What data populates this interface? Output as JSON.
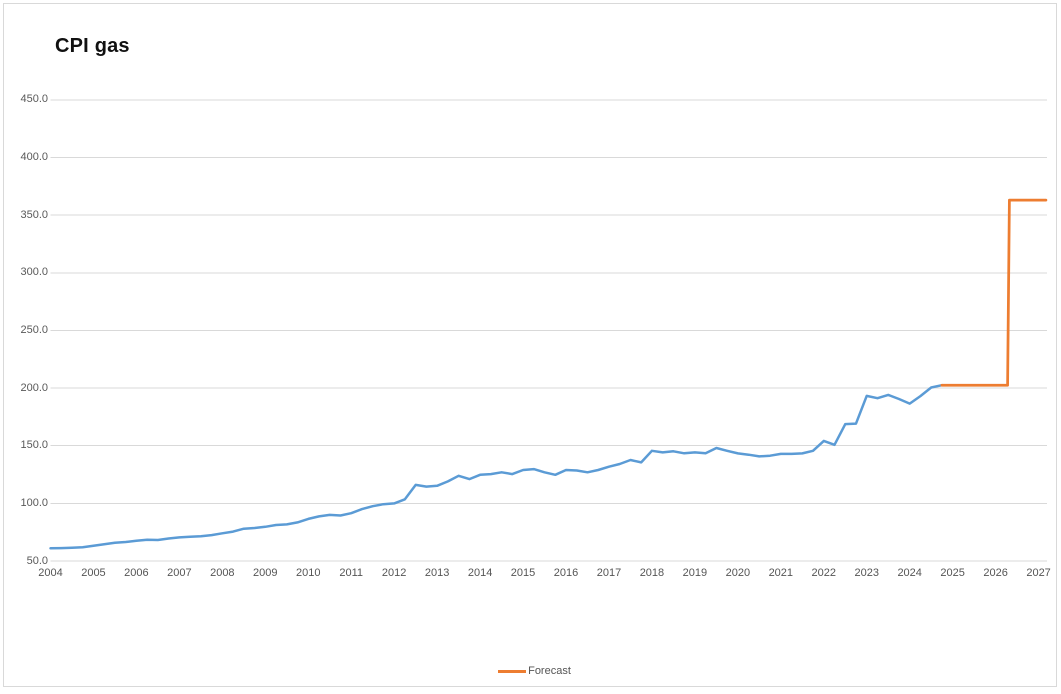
{
  "frame": {
    "background": "#ffffff",
    "border_color": "#d9d9d9"
  },
  "chart_data": {
    "type": "line",
    "title": "CPI gas",
    "xlabel": "",
    "ylabel": "",
    "ylim": [
      50,
      475
    ],
    "xlim": [
      2004,
      2027.2
    ],
    "grid": "horizontal",
    "y_tick_labels": [
      "450.0",
      "400.0",
      "350.0",
      "300.0",
      "250.0",
      "200.0",
      "150.0",
      "100.0",
      "50.0"
    ],
    "x_tick_labels": [
      "2004",
      "2005",
      "2006",
      "2007",
      "2008",
      "2009",
      "2010",
      "2011",
      "2012",
      "2013",
      "2014",
      "2015",
      "2016",
      "2017",
      "2018",
      "2019",
      "2020",
      "2021",
      "2022",
      "2023",
      "2024",
      "2025",
      "2026",
      "2027"
    ],
    "colors": {
      "actual_line": "#5b9bd5",
      "forecast_line": "#ed7d31",
      "gridline": "#d9d9d9",
      "tick_label": "#595959"
    },
    "legend": {
      "position": "bottom-center",
      "entries": [
        {
          "label": "Forecast",
          "color": "#ed7d31"
        }
      ]
    },
    "series": [
      {
        "name": "CPI gas actual",
        "color": "#5b9bd5",
        "stroke_width": 2.5,
        "points": [
          [
            2004.0,
            61.0
          ],
          [
            2004.25,
            61.2
          ],
          [
            2004.5,
            61.5
          ],
          [
            2004.75,
            62.0
          ],
          [
            2005.0,
            63.3
          ],
          [
            2005.25,
            64.5
          ],
          [
            2005.5,
            65.8
          ],
          [
            2005.75,
            66.5
          ],
          [
            2006.0,
            67.5
          ],
          [
            2006.25,
            68.5
          ],
          [
            2006.5,
            68.2
          ],
          [
            2006.75,
            69.5
          ],
          [
            2007.0,
            70.5
          ],
          [
            2007.25,
            71.0
          ],
          [
            2007.5,
            71.5
          ],
          [
            2007.75,
            72.5
          ],
          [
            2008.0,
            74.0
          ],
          [
            2008.25,
            75.5
          ],
          [
            2008.5,
            78.0
          ],
          [
            2008.75,
            78.6
          ],
          [
            2009.0,
            79.7
          ],
          [
            2009.25,
            81.2
          ],
          [
            2009.5,
            81.7
          ],
          [
            2009.75,
            83.5
          ],
          [
            2010.0,
            86.5
          ],
          [
            2010.25,
            88.7
          ],
          [
            2010.5,
            90.0
          ],
          [
            2010.75,
            89.5
          ],
          [
            2011.0,
            91.5
          ],
          [
            2011.25,
            95.0
          ],
          [
            2011.5,
            97.5
          ],
          [
            2011.75,
            99.3
          ],
          [
            2012.0,
            100.0
          ],
          [
            2012.25,
            103.5
          ],
          [
            2012.5,
            116.0
          ],
          [
            2012.75,
            114.5
          ],
          [
            2013.0,
            115.2
          ],
          [
            2013.25,
            119.0
          ],
          [
            2013.5,
            123.9
          ],
          [
            2013.75,
            121.0
          ],
          [
            2014.0,
            124.8
          ],
          [
            2014.25,
            125.4
          ],
          [
            2014.5,
            126.9
          ],
          [
            2014.75,
            125.4
          ],
          [
            2015.0,
            128.9
          ],
          [
            2015.25,
            129.7
          ],
          [
            2015.5,
            126.9
          ],
          [
            2015.75,
            124.8
          ],
          [
            2016.0,
            128.9
          ],
          [
            2016.25,
            128.5
          ],
          [
            2016.5,
            126.9
          ],
          [
            2016.75,
            128.9
          ],
          [
            2017.0,
            131.8
          ],
          [
            2017.25,
            134.1
          ],
          [
            2017.5,
            137.6
          ],
          [
            2017.75,
            135.5
          ],
          [
            2018.0,
            145.6
          ],
          [
            2018.25,
            144.2
          ],
          [
            2018.5,
            145.1
          ],
          [
            2018.75,
            143.4
          ],
          [
            2019.0,
            144.2
          ],
          [
            2019.25,
            143.4
          ],
          [
            2019.5,
            148.0
          ],
          [
            2019.75,
            145.6
          ],
          [
            2020.0,
            143.3
          ],
          [
            2020.25,
            142.2
          ],
          [
            2020.5,
            140.7
          ],
          [
            2020.75,
            141.3
          ],
          [
            2021.0,
            142.9
          ],
          [
            2021.25,
            142.9
          ],
          [
            2021.5,
            143.3
          ],
          [
            2021.75,
            145.6
          ],
          [
            2022.0,
            154.2
          ],
          [
            2022.25,
            150.8
          ],
          [
            2022.5,
            168.7
          ],
          [
            2022.75,
            169.2
          ],
          [
            2023.0,
            193.2
          ],
          [
            2023.25,
            191.2
          ],
          [
            2023.5,
            194.1
          ],
          [
            2023.75,
            190.5
          ],
          [
            2024.0,
            186.5
          ],
          [
            2024.25,
            193.0
          ],
          [
            2024.5,
            200.5
          ],
          [
            2024.75,
            202.5
          ]
        ]
      },
      {
        "name": "Forecast",
        "color": "#ed7d31",
        "stroke_width": 2.75,
        "points": [
          [
            2024.75,
            202.5
          ],
          [
            2026.28,
            202.5
          ],
          [
            2026.32,
            363.0
          ],
          [
            2027.17,
            363.0
          ]
        ]
      }
    ]
  }
}
